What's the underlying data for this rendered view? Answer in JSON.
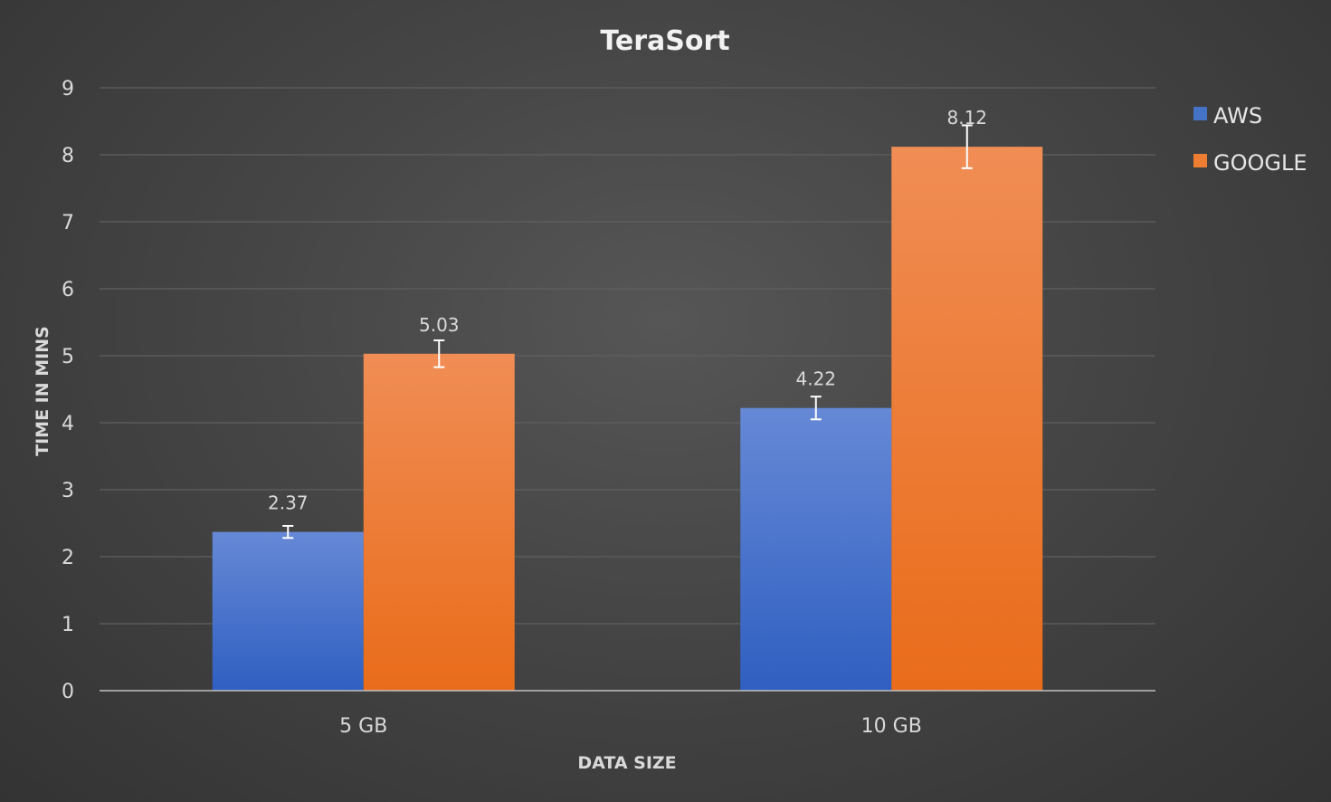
{
  "chart_data": {
    "type": "bar",
    "title": "TeraSort",
    "xlabel": "DATA SIZE",
    "ylabel": "TIME IN MINS",
    "categories": [
      "5 GB",
      "10 GB"
    ],
    "series": [
      {
        "name": "AWS",
        "values": [
          2.37,
          4.22
        ],
        "labels": [
          "2.37",
          "4.22"
        ],
        "error": [
          0.09,
          0.17
        ],
        "color": "#4472C4"
      },
      {
        "name": "GOOGLE",
        "values": [
          5.03,
          8.12
        ],
        "labels": [
          "5.03",
          "8.12"
        ],
        "error": [
          0.2,
          0.32
        ],
        "color": "#ED7D31"
      }
    ],
    "ylim": [
      0,
      9
    ],
    "yticks": [
      "0",
      "1",
      "2",
      "3",
      "4",
      "5",
      "6",
      "7",
      "8",
      "9"
    ],
    "grid": true,
    "legend": "right",
    "gridline_color": "#5f5f5f",
    "axis_color": "#bfbfbf",
    "errorbar_color": "#ffffff"
  }
}
